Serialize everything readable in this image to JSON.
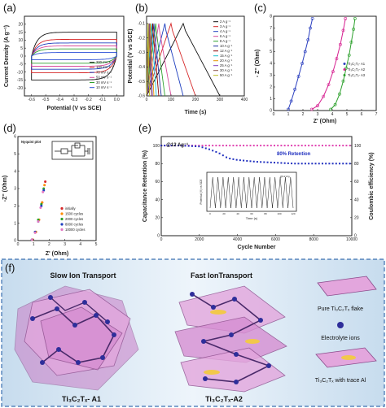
{
  "panels": {
    "a": {
      "label": "(a)"
    },
    "b": {
      "label": "(b)"
    },
    "c": {
      "label": "(c)"
    },
    "d": {
      "label": "(d)"
    },
    "e": {
      "label": "(e)"
    },
    "f": {
      "label": "(f)"
    }
  },
  "chart_data": [
    {
      "id": "a",
      "type": "line",
      "xlabel": "Potential (V vs SCE)",
      "ylabel": "Current Density (A g⁻¹)",
      "xlim": [
        -0.65,
        0.05
      ],
      "ylim": [
        -25,
        25
      ],
      "xticks": [
        "-0.6",
        "-0.5",
        "-0.4",
        "-0.3",
        "-0.2",
        "-0.1",
        "0.0"
      ],
      "yticks": [
        "-20",
        "-15",
        "-10",
        "-5",
        "0",
        "5",
        "10",
        "15",
        "20"
      ],
      "legend_position": "bottom-right",
      "series": [
        {
          "name": "200 mV s⁻¹",
          "color": "#111111",
          "amplitude": 20
        },
        {
          "name": "100 mV s⁻¹",
          "color": "#d62728",
          "amplitude": 14
        },
        {
          "name": "70 mV s⁻¹",
          "color": "#1f3fbf",
          "amplitude": 11
        },
        {
          "name": "50 mV s⁻¹",
          "color": "#d84b9a",
          "amplitude": 8.5
        },
        {
          "name": "30 mV s⁻¹",
          "color": "#2ca02c",
          "amplitude": 6
        },
        {
          "name": "10 mV s⁻¹",
          "color": "#2b4fd6",
          "amplitude": 3
        }
      ]
    },
    {
      "id": "b",
      "type": "line",
      "xlabel": "Time (s)",
      "ylabel": "Potential (V vs SCE)",
      "xlim": [
        0,
        400
      ],
      "ylim": [
        -0.6,
        -0.05
      ],
      "xticks": [
        "0",
        "100",
        "200",
        "300",
        "400"
      ],
      "yticks": [
        "-0.6",
        "-0.5",
        "-0.4",
        "-0.3",
        "-0.2",
        "-0.1"
      ],
      "legend_position": "top-right",
      "series": [
        {
          "name": "2 A g⁻¹",
          "color": "#111111",
          "duration": 300
        },
        {
          "name": "3 A g⁻¹",
          "color": "#d62728",
          "duration": 200
        },
        {
          "name": "4 A g⁻¹",
          "color": "#1f3fbf",
          "duration": 150
        },
        {
          "name": "6 A g⁻¹",
          "color": "#d84b9a",
          "duration": 100
        },
        {
          "name": "8 A g⁻¹",
          "color": "#2ca02c",
          "duration": 75
        },
        {
          "name": "10 A g⁻¹",
          "color": "#1a2f9f",
          "duration": 60
        },
        {
          "name": "12 A g⁻¹",
          "color": "#8b0000",
          "duration": 50
        },
        {
          "name": "15 A g⁻¹",
          "color": "#17becf",
          "duration": 40
        },
        {
          "name": "20 A g⁻¹",
          "color": "#e69500",
          "duration": 30
        },
        {
          "name": "25 A g⁻¹",
          "color": "#7f3fbf",
          "duration": 24
        },
        {
          "name": "30 A g⁻¹",
          "color": "#8c564b",
          "duration": 20
        },
        {
          "name": "50 A g⁻¹",
          "color": "#bcbd22",
          "duration": 12
        }
      ]
    },
    {
      "id": "c",
      "type": "scatter",
      "xlabel": "Z' (Ohm)",
      "ylabel": "- Z'' (Ohm)",
      "xlim": [
        0,
        7
      ],
      "ylim": [
        0,
        8
      ],
      "xticks": [
        "0",
        "1",
        "2",
        "3",
        "4",
        "5",
        "6",
        "7"
      ],
      "yticks": [
        "0",
        "1",
        "2",
        "3",
        "4",
        "5",
        "6",
        "7",
        "8"
      ],
      "legend_position": "center-right",
      "series": [
        {
          "name": "Ti₃C₂Tₓ- A1",
          "color": "#2b3fbf",
          "x": [
            1.0,
            1.2,
            1.45,
            1.7,
            1.95,
            2.15,
            2.35,
            2.5,
            2.65
          ],
          "y": [
            0.1,
            0.8,
            1.8,
            2.9,
            4.0,
            5.0,
            6.0,
            7.0,
            7.8
          ]
        },
        {
          "name": "Ti₃C₂Tₓ- A2",
          "color": "#d62090",
          "x": [
            2.6,
            3.0,
            3.4,
            3.75,
            4.05,
            4.3,
            4.55,
            4.75,
            4.9
          ],
          "y": [
            0.1,
            0.4,
            1.2,
            2.2,
            3.3,
            4.4,
            5.6,
            6.8,
            7.8
          ]
        },
        {
          "name": "Ti₃C₂Tₓ- A3",
          "color": "#2ca02c",
          "x": [
            3.9,
            4.2,
            4.5,
            4.75,
            4.95,
            5.15,
            5.3,
            5.45,
            5.55
          ],
          "y": [
            0.1,
            0.5,
            1.4,
            2.5,
            3.6,
            4.7,
            5.8,
            6.9,
            7.8
          ]
        }
      ]
    },
    {
      "id": "d",
      "type": "scatter",
      "title": "Nyquist plot",
      "xlabel": "Z' (Ohm)",
      "ylabel": "-Z'' (Ohm)",
      "xlim": [
        0,
        5
      ],
      "ylim": [
        0,
        6
      ],
      "xticks": [
        "0",
        "1",
        "2",
        "3",
        "4",
        "5"
      ],
      "yticks": [
        "0",
        "1",
        "2",
        "3",
        "4",
        "5",
        "6"
      ],
      "legend_position": "bottom-right",
      "series": [
        {
          "name": "initially",
          "color": "#d62728",
          "x": [
            0.95,
            1.15,
            1.35,
            1.55,
            1.75
          ],
          "y": [
            0.05,
            0.5,
            1.2,
            2.2,
            3.4
          ]
        },
        {
          "name": "1500 cycles",
          "color": "#ff8c00",
          "x": [
            0.95,
            1.15,
            1.35,
            1.55,
            1.7
          ],
          "y": [
            0.05,
            0.5,
            1.2,
            2.2,
            3.2
          ]
        },
        {
          "name": "2000 cycles",
          "color": "#2ca02c",
          "x": [
            0.9,
            1.1,
            1.3,
            1.5,
            1.65
          ],
          "y": [
            0.05,
            0.5,
            1.2,
            2.1,
            3.0
          ]
        },
        {
          "name": "8000 cycles",
          "color": "#1f3fbf",
          "x": [
            0.9,
            1.1,
            1.3,
            1.5,
            1.65
          ],
          "y": [
            0.05,
            0.5,
            1.1,
            2.0,
            2.9
          ]
        },
        {
          "name": "10000 cycles",
          "color": "#e377c2",
          "x": [
            0.9,
            1.1,
            1.3,
            1.45,
            1.6
          ],
          "y": [
            0.05,
            0.45,
            1.1,
            1.9,
            2.8
          ]
        }
      ]
    },
    {
      "id": "e",
      "type": "scatter",
      "xlabel": "Cycle Number",
      "ylabel": "Capacitance Retention (%)",
      "ylabel_right": "Coulombic efficiency (%)",
      "xlim": [
        0,
        10000
      ],
      "ylim": [
        0,
        100
      ],
      "xticks": [
        "0",
        "2000",
        "4000",
        "6000",
        "8000",
        "10000"
      ],
      "yticks": [
        "0",
        "20",
        "40",
        "60",
        "80",
        "100"
      ],
      "annotation_rate": "@12 Ag⁻¹",
      "annotation_retention": "80% Retention",
      "series": [
        {
          "name": "Capacitance Retention",
          "color": "#1f2fbf",
          "x": [
            0,
            1000,
            2000,
            2500,
            3000,
            3500,
            4000,
            4500,
            5000,
            6000,
            7000,
            8000,
            9000,
            10000
          ],
          "y": [
            100,
            100,
            99,
            96,
            92,
            86,
            84,
            83,
            82,
            81,
            80,
            80,
            80,
            80
          ]
        },
        {
          "name": "Coulombic efficiency",
          "color": "#e040b0",
          "x": [
            0,
            1000,
            2000,
            3000,
            4000,
            5000,
            6000,
            7000,
            8000,
            9000,
            10000
          ],
          "y": [
            100,
            100,
            100,
            100,
            100,
            100,
            100,
            100,
            100,
            100,
            100
          ]
        }
      ],
      "inset": {
        "xlabel": "Time (s)",
        "ylabel": "Potential (V) vs SCE",
        "xticks": [
          "0",
          "20",
          "40",
          "60",
          "80",
          "100",
          "120"
        ],
        "yticks": [
          "-0.6",
          "-0.5",
          "-0.4",
          "-0.3",
          "-0.2",
          "-0.1"
        ],
        "legend": "@12 A/g",
        "cycles": 16
      }
    }
  ],
  "schematic": {
    "left_title": "Slow Ion Transport",
    "mid_title": "Fast IonTransport",
    "left_caption": "Ti₃C₂Tₓ- A1",
    "mid_caption": "Ti₃C₂Tₓ-A2",
    "legend_flake": "Pure Ti₃C₂Tₓ flake",
    "legend_ions": "Electrolyte ions",
    "legend_trace": "Ti₃C₂Tₓ with trace Al",
    "colors": {
      "flake": "#d88fd0",
      "ion": "#2e2e9a",
      "trace": "#f2c84b",
      "box_border": "#3a6fb0",
      "box_bg": "#e6f0f8"
    }
  }
}
